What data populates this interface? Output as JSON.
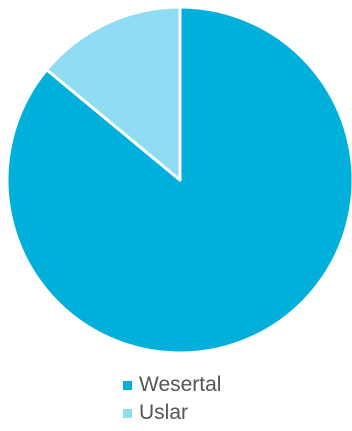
{
  "chart_data": {
    "type": "pie",
    "categories": [
      "Wesertal",
      "Uslar"
    ],
    "values": [
      86,
      14
    ],
    "colors": [
      "#00b0db",
      "#8fdcf3"
    ],
    "legend": "bottom"
  }
}
